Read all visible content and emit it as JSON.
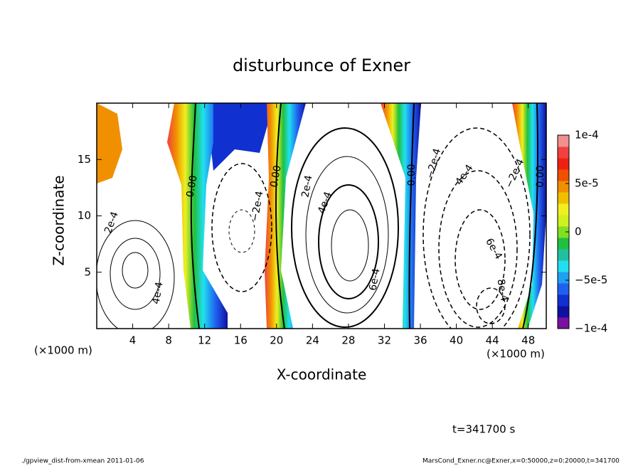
{
  "chart_data": {
    "type": "contour",
    "title": "disturbunce of Exner",
    "xlabel": "X-coordinate",
    "ylabel": "Z-coordinate",
    "x_unit_labels": [
      "(×1000 m)",
      "(×1000 m)"
    ],
    "xlim": [
      0,
      50
    ],
    "ylim": [
      0,
      20
    ],
    "xticks": [
      4,
      8,
      12,
      16,
      20,
      24,
      28,
      32,
      36,
      40,
      44,
      48
    ],
    "yticks": [
      5,
      10,
      15
    ],
    "colorbar": {
      "lim": [
        -0.0001,
        0.0001
      ],
      "ticks": [
        {
          "value": -0.0001,
          "label": "−1e-4"
        },
        {
          "value": -5e-05,
          "label": "−5e-5"
        },
        0,
        {
          "value": 5e-05,
          "label": "5e-5"
        },
        {
          "value": 0.0001,
          "label": "1e-4"
        }
      ],
      "colors": [
        "#7a10a0",
        "#1010a0",
        "#1030d0",
        "#2060f0",
        "#20a0f0",
        "#20e0f0",
        "#20c0a0",
        "#20c040",
        "#80e020",
        "#d0f020",
        "#f0f020",
        "#f0c000",
        "#f09000",
        "#f05000",
        "#f02010",
        "#f04040",
        "#f09090"
      ]
    },
    "contour_labels": [
      "0.00",
      "0.00",
      "0.00",
      "0.00",
      "2e-4",
      "−2e-4",
      "2e-4",
      "4e-4",
      "6e-4",
      "4e-4",
      "−2e-4",
      "4e-4",
      "−2e-4",
      "6e-4",
      "8e-4"
    ],
    "annotation": "t=341700 s",
    "footer_left": "./gpview_dist-from-xmean  2011-01-06",
    "footer_right": "MarsCond_Exner.nc@Exner,x=0:50000,z=0:20000,t=341700"
  }
}
